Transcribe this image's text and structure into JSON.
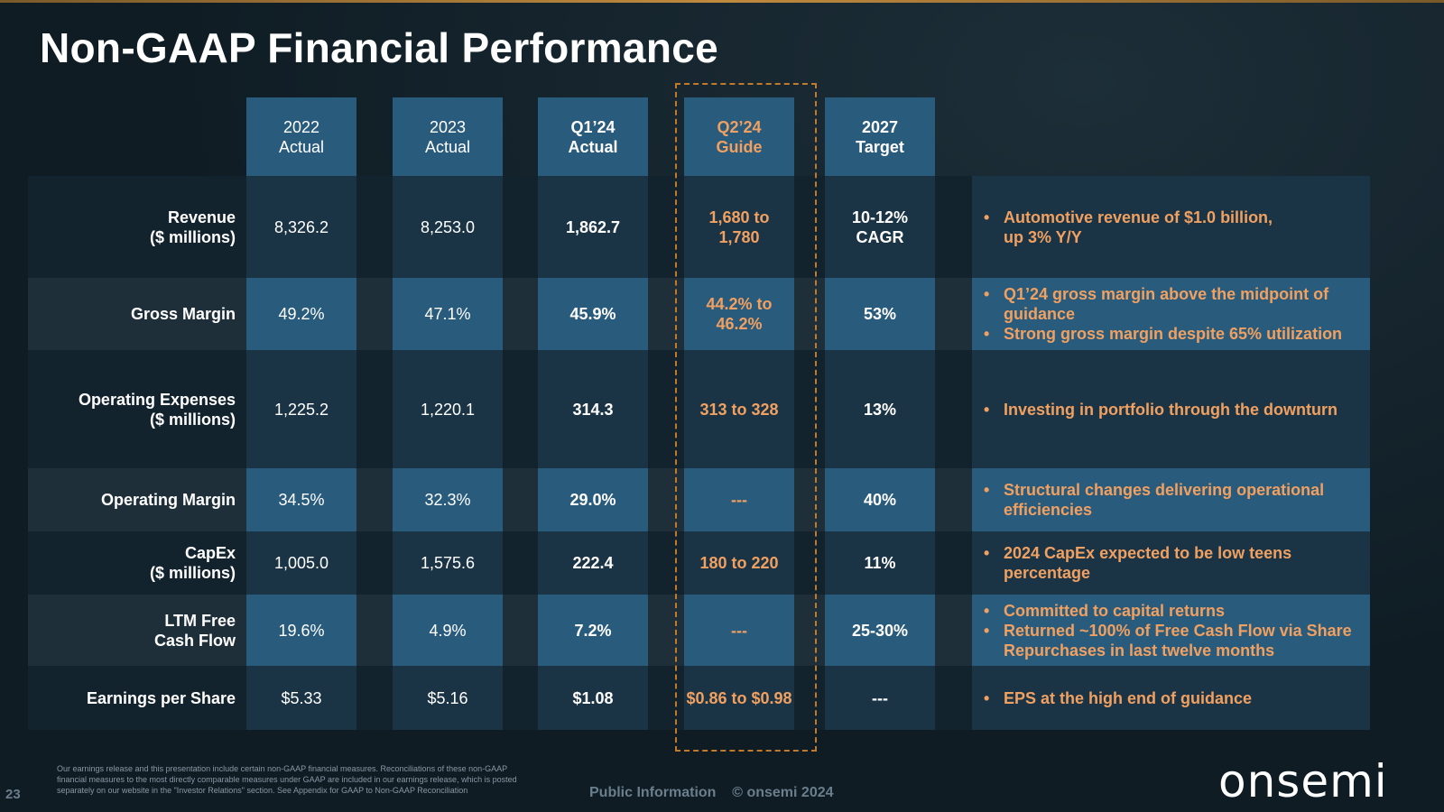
{
  "title": "Non-GAAP Financial Performance",
  "columns": [
    {
      "label": "2022\nActual"
    },
    {
      "label": "2023\nActual"
    },
    {
      "label": "Q1’24\nActual"
    },
    {
      "label": "Q2’24\nGuide"
    },
    {
      "label": "2027\nTarget"
    }
  ],
  "rows": [
    {
      "label": "Revenue\n($ millions)",
      "values": [
        "8,326.2",
        "8,253.0",
        "1,862.7",
        "1,680 to\n1,780",
        "10-12%\nCAGR"
      ],
      "comments": [
        "Automotive revenue of $1.0 billion,\nup 3% Y/Y"
      ]
    },
    {
      "label": "Gross Margin",
      "values": [
        "49.2%",
        "47.1%",
        "45.9%",
        "44.2% to\n46.2%",
        "53%"
      ],
      "comments": [
        "Q1’24 gross margin above the midpoint of guidance",
        "Strong gross margin despite 65% utilization"
      ]
    },
    {
      "label": "Operating Expenses\n($ millions)",
      "values": [
        "1,225.2",
        "1,220.1",
        "314.3",
        "313 to 328",
        "13%"
      ],
      "comments": [
        "Investing in portfolio through the downturn"
      ]
    },
    {
      "label": "Operating Margin",
      "values": [
        "34.5%",
        "32.3%",
        "29.0%",
        "---",
        "40%"
      ],
      "comments": [
        "Structural changes delivering operational efficiencies"
      ]
    },
    {
      "label": "CapEx\n($ millions)",
      "values": [
        "1,005.0",
        "1,575.6",
        "222.4",
        "180 to 220",
        "11%"
      ],
      "comments": [
        "2024 CapEx expected to be low teens percentage"
      ]
    },
    {
      "label": "LTM Free\nCash Flow",
      "values": [
        "19.6%",
        "4.9%",
        "7.2%",
        "---",
        "25-30%"
      ],
      "comments": [
        "Committed to capital returns",
        "Returned ~100% of Free Cash Flow via Share Repurchases in last twelve months"
      ]
    },
    {
      "label": "Earnings per Share",
      "values": [
        "$5.33",
        "$5.16",
        "$1.08",
        "$0.86 to $0.98",
        "---"
      ],
      "comments": [
        "EPS at the high end of guidance"
      ]
    }
  ],
  "footer": {
    "slide_number": "23",
    "disclaimer": "Our earnings release and this presentation include certain non-GAAP financial measures. Reconciliations of these non-GAAP financial measures to the most directly comparable measures under GAAP are included in our earnings release, which is posted separately on our website in the \"Investor Relations\" section. See Appendix for GAAP to Non-GAAP Reconciliation",
    "public_info": "Public Information    © onsemi 2024",
    "logo_text": "onsemi"
  },
  "colors": {
    "background": "#0f1c24",
    "header_fill": "#295b7d",
    "accent_orange": "#f0a060",
    "dashed_border": "#c07a2a"
  }
}
